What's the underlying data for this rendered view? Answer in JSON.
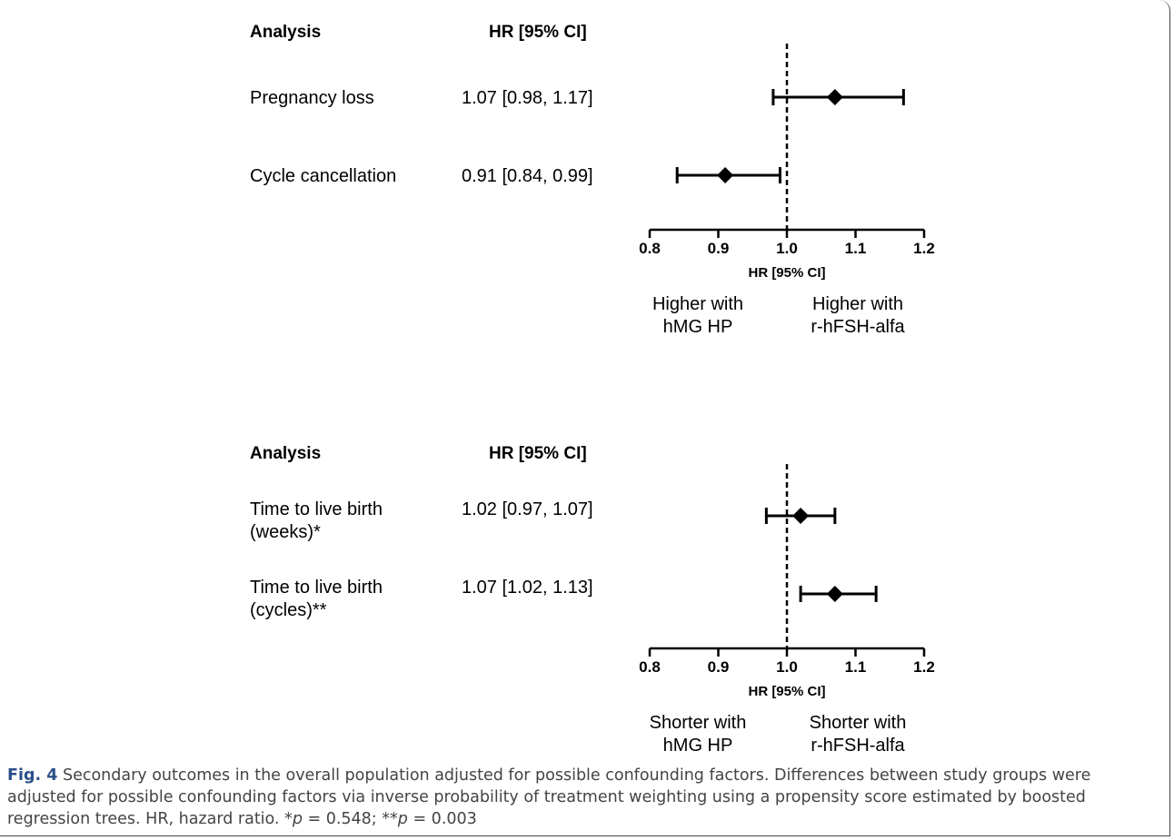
{
  "chart_data": [
    {
      "type": "forest",
      "header": {
        "col1": "Analysis",
        "col2": "HR [95% CI]"
      },
      "rows": [
        {
          "label": [
            "Pregnancy loss"
          ],
          "ci_text": "1.07 [0.98, 1.17]",
          "hr": 1.07,
          "lo": 0.98,
          "hi": 1.17
        },
        {
          "label": [
            "Cycle cancellation"
          ],
          "ci_text": "0.91 [0.84, 0.99]",
          "hr": 0.91,
          "lo": 0.84,
          "hi": 0.99
        }
      ],
      "xlim": [
        0.8,
        1.2
      ],
      "ticks": [
        "0.8",
        "0.9",
        "1.0",
        "1.1",
        "1.2"
      ],
      "tick_values": [
        0.8,
        0.9,
        1.0,
        1.1,
        1.2
      ],
      "reference": 1.0,
      "xlabel": "HR [95% CI]",
      "left_note": [
        "Higher with",
        "hMG HP"
      ],
      "right_note": [
        "Higher with",
        "r-hFSH-alfa"
      ]
    },
    {
      "type": "forest",
      "header": {
        "col1": "Analysis",
        "col2": "HR [95% CI]"
      },
      "rows": [
        {
          "label": [
            "Time to live birth",
            "(weeks)*"
          ],
          "ci_text": "1.02 [0.97, 1.07]",
          "hr": 1.02,
          "lo": 0.97,
          "hi": 1.07
        },
        {
          "label": [
            "Time to live birth",
            "(cycles)**"
          ],
          "ci_text": "1.07 [1.02, 1.13]",
          "hr": 1.07,
          "lo": 1.02,
          "hi": 1.13
        }
      ],
      "xlim": [
        0.8,
        1.2
      ],
      "ticks": [
        "0.8",
        "0.9",
        "1.0",
        "1.1",
        "1.2"
      ],
      "tick_values": [
        0.8,
        0.9,
        1.0,
        1.1,
        1.2
      ],
      "reference": 1.0,
      "xlabel": "HR [95% CI]",
      "left_note": [
        "Shorter with",
        "hMG HP"
      ],
      "right_note": [
        "Shorter with",
        "r-hFSH-alfa"
      ]
    }
  ],
  "caption": {
    "label": "Fig. 4",
    "text_1": " Secondary outcomes in the overall population adjusted for possible confounding factors. Differences between study groups were adjusted for possible confounding factors via inverse probability of treatment weighting using a propensity score estimated by boosted regression trees. HR, hazard ratio. *",
    "p_symbol_1": "p",
    "text_2": " = 0.548; **",
    "p_symbol_2": "p",
    "text_3": " = 0.003"
  }
}
